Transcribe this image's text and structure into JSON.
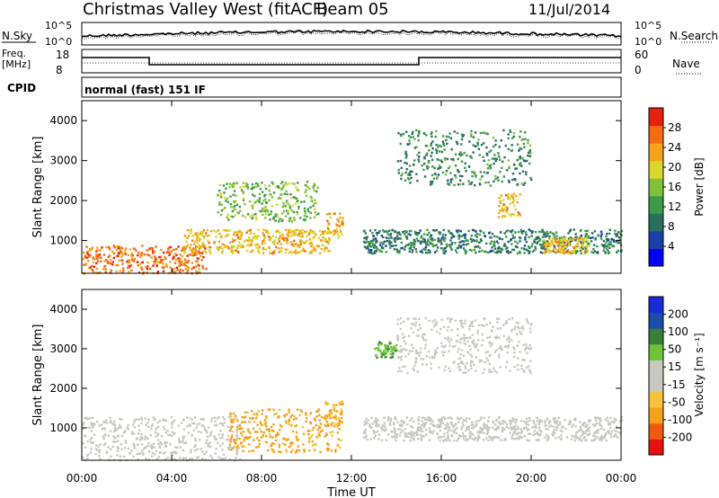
{
  "header": {
    "title": "Christmas Valley West (fitACF)",
    "beam": "Beam 05",
    "date": "11/Jul/2014"
  },
  "noise_panel": {
    "label": "N.Sky",
    "right_label": "N.Search",
    "left_ticks": [
      "10^5",
      "10^0"
    ],
    "right_ticks": [
      "10^5",
      "10^0"
    ]
  },
  "freq_panel": {
    "label_line1": "Freq.",
    "label_line2": "[MHz]",
    "left_ticks": [
      "18",
      "8"
    ],
    "right_ticks": [
      "60",
      "0"
    ],
    "right_label": "Nave"
  },
  "cpid_panel": {
    "label": "CPID",
    "text": "normal (fast) 151 IF"
  },
  "axes": {
    "xlabel": "Time UT",
    "xticks": [
      "00:00",
      "04:00",
      "08:00",
      "12:00",
      "16:00",
      "20:00",
      "00:00"
    ],
    "ylabel": "Slant Range [km]",
    "yticks": [
      "1000",
      "2000",
      "3000",
      "4000"
    ]
  },
  "colors": {
    "power_scale": [
      "#0000ff",
      "#1a3fa8",
      "#2a6e5e",
      "#3c9a48",
      "#7fc23c",
      "#d8d82a",
      "#f5a31a",
      "#f56a12",
      "#e82010"
    ],
    "velocity_scale": [
      "#e81010",
      "#f05a10",
      "#f5a01a",
      "#f5c23a",
      "#c8c8c0",
      "#c8c8c0",
      "#6fc33a",
      "#3a7e3a",
      "#1a4ea8",
      "#1a2ad8"
    ]
  },
  "chart_data": [
    {
      "type": "heatmap",
      "title": "Power",
      "colorbar_label": "Power [dB]",
      "colorbar_ticks": [
        "4",
        "8",
        "12",
        "16",
        "20",
        "24",
        "28"
      ],
      "colorbar_range": [
        0,
        32
      ],
      "xlabel": "Time UT",
      "ylabel": "Slant Range [km]",
      "x_range_hours": [
        0,
        24
      ],
      "y_range_km": [
        180,
        4500
      ],
      "features": [
        {
          "t0": 0.0,
          "t1": 5.5,
          "r0": 200,
          "r1": 900,
          "power": 26
        },
        {
          "t0": 4.5,
          "t1": 11.0,
          "r0": 700,
          "r1": 1300,
          "power": 22
        },
        {
          "t0": 6.0,
          "t1": 10.5,
          "r0": 1500,
          "r1": 2500,
          "power": 15
        },
        {
          "t0": 10.8,
          "t1": 11.6,
          "r0": 1100,
          "r1": 1700,
          "power": 22
        },
        {
          "t0": 12.5,
          "t1": 24.0,
          "r0": 700,
          "r1": 1300,
          "power": 10
        },
        {
          "t0": 14.0,
          "t1": 20.0,
          "r0": 2400,
          "r1": 3800,
          "power": 11
        },
        {
          "t0": 18.5,
          "t1": 19.5,
          "r0": 1600,
          "r1": 2200,
          "power": 22
        },
        {
          "t0": 20.5,
          "t1": 22.5,
          "r0": 700,
          "r1": 1100,
          "power": 22
        }
      ]
    },
    {
      "type": "heatmap",
      "title": "Velocity",
      "colorbar_label": "Velocity [m s⁻¹]",
      "colorbar_ticks": [
        "-200",
        "-100",
        "-50",
        "-15",
        "15",
        "50",
        "100",
        "200"
      ],
      "colorbar_range": [
        -250,
        250
      ],
      "xlabel": "Time UT",
      "ylabel": "Slant Range [km]",
      "x_range_hours": [
        0,
        24
      ],
      "y_range_km": [
        180,
        4500
      ],
      "features": [
        {
          "t0": 0.0,
          "t1": 7.0,
          "r0": 200,
          "r1": 1300,
          "velocity": 0
        },
        {
          "t0": 6.5,
          "t1": 11.5,
          "r0": 400,
          "r1": 1500,
          "velocity": -60
        },
        {
          "t0": 10.8,
          "t1": 11.6,
          "r0": 1100,
          "r1": 1700,
          "velocity": -50
        },
        {
          "t0": 12.5,
          "t1": 24.0,
          "r0": 700,
          "r1": 1300,
          "velocity": 0
        },
        {
          "t0": 14.0,
          "t1": 20.0,
          "r0": 2400,
          "r1": 3800,
          "velocity": 0
        },
        {
          "t0": 13.0,
          "t1": 14.0,
          "r0": 2800,
          "r1": 3200,
          "velocity": 40
        }
      ]
    }
  ]
}
